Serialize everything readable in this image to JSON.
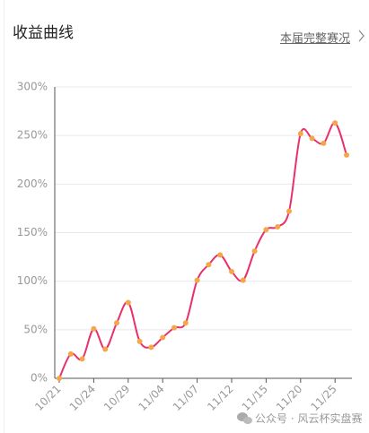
{
  "header": {
    "title": "收益曲线",
    "link": "本届完整赛况"
  },
  "chart_data": {
    "type": "line",
    "categories": [
      "10/21",
      null,
      null,
      "10/24",
      null,
      null,
      "10/29",
      null,
      null,
      "11/04",
      null,
      null,
      "11/07",
      null,
      null,
      "11/12",
      null,
      null,
      "11/15",
      null,
      null,
      "11/20",
      null,
      null,
      "11/25",
      null
    ],
    "series": [
      {
        "color": "#e8316b",
        "marker_color": "#f5a64b",
        "values": [
          0,
          25,
          20,
          51,
          30,
          57,
          78,
          38,
          32,
          42,
          52,
          57,
          101,
          117,
          127,
          110,
          101,
          131,
          153,
          156,
          172,
          252,
          247,
          242,
          263,
          230
        ]
      }
    ],
    "ylim": [
      0,
      300
    ],
    "yticks": [
      {
        "value": 0,
        "label": "0%"
      },
      {
        "value": 50,
        "label": "50%"
      },
      {
        "value": 100,
        "label": "100%"
      },
      {
        "value": 150,
        "label": "150%"
      },
      {
        "value": 200,
        "label": "200%"
      },
      {
        "value": 250,
        "label": "250%"
      },
      {
        "value": 300,
        "label": "300%"
      }
    ],
    "grid": true
  },
  "watermark": "公众号 · 风云杯实盘赛"
}
